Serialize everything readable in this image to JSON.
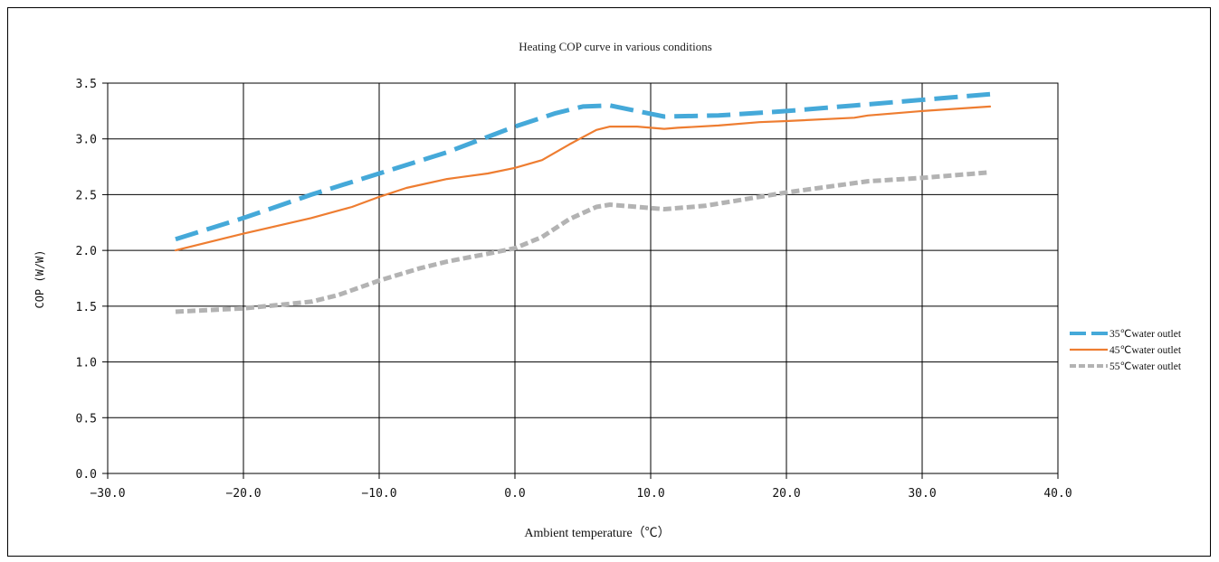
{
  "chart_data": {
    "type": "line",
    "title": "Heating COP curve in various conditions",
    "xlabel": "Ambient temperature（℃）",
    "ylabel": "COP (W/W)",
    "xlim": [
      -30,
      40
    ],
    "ylim": [
      0,
      3.5
    ],
    "x_ticks": [
      -30,
      -20,
      -10,
      0,
      10,
      20,
      30,
      40
    ],
    "x_tick_labels": [
      "−30.0",
      "−20.0",
      "−10.0",
      "0.0",
      "10.0",
      "20.0",
      "30.0",
      "40.0"
    ],
    "y_ticks": [
      0,
      0.5,
      1.0,
      1.5,
      2.0,
      2.5,
      3.0,
      3.5
    ],
    "y_tick_labels": [
      "0.0",
      "0.5",
      "1.0",
      "1.5",
      "2.0",
      "2.5",
      "3.0",
      "3.5"
    ],
    "grid": true,
    "legend_position": "right",
    "series": [
      {
        "name": "35℃water outlet",
        "color": "#45a9d9",
        "dash": "long-dash",
        "points": [
          [
            -25,
            2.1
          ],
          [
            -20,
            2.29
          ],
          [
            -15,
            2.5
          ],
          [
            -10,
            2.69
          ],
          [
            -5,
            2.88
          ],
          [
            0,
            3.11
          ],
          [
            3,
            3.23
          ],
          [
            5,
            3.29
          ],
          [
            7,
            3.3
          ],
          [
            9,
            3.25
          ],
          [
            11,
            3.2
          ],
          [
            15,
            3.21
          ],
          [
            20,
            3.25
          ],
          [
            25,
            3.3
          ],
          [
            30,
            3.35
          ],
          [
            35,
            3.4
          ]
        ]
      },
      {
        "name": "45℃water outlet",
        "color": "#ee7d31",
        "dash": "solid",
        "points": [
          [
            -25,
            2.0
          ],
          [
            -20,
            2.15
          ],
          [
            -15,
            2.29
          ],
          [
            -12,
            2.39
          ],
          [
            -10,
            2.48
          ],
          [
            -8,
            2.56
          ],
          [
            -5,
            2.64
          ],
          [
            -2,
            2.69
          ],
          [
            0,
            2.74
          ],
          [
            2,
            2.81
          ],
          [
            4,
            2.95
          ],
          [
            6,
            3.08
          ],
          [
            7,
            3.11
          ],
          [
            9,
            3.11
          ],
          [
            11,
            3.09
          ],
          [
            12,
            3.1
          ],
          [
            15,
            3.12
          ],
          [
            18,
            3.15
          ],
          [
            20,
            3.16
          ],
          [
            25,
            3.19
          ],
          [
            26,
            3.21
          ],
          [
            30,
            3.25
          ],
          [
            35,
            3.29
          ]
        ]
      },
      {
        "name": "55℃water outlet",
        "color": "#b3b3b3",
        "dash": "short-dash",
        "points": [
          [
            -25,
            1.45
          ],
          [
            -20,
            1.48
          ],
          [
            -15,
            1.54
          ],
          [
            -13,
            1.6
          ],
          [
            -10,
            1.73
          ],
          [
            -7,
            1.84
          ],
          [
            -5,
            1.9
          ],
          [
            -2,
            1.97
          ],
          [
            0,
            2.02
          ],
          [
            2,
            2.12
          ],
          [
            4,
            2.28
          ],
          [
            6,
            2.39
          ],
          [
            7,
            2.41
          ],
          [
            9,
            2.39
          ],
          [
            11,
            2.37
          ],
          [
            14,
            2.4
          ],
          [
            17,
            2.46
          ],
          [
            20,
            2.52
          ],
          [
            23,
            2.57
          ],
          [
            26,
            2.62
          ],
          [
            30,
            2.65
          ],
          [
            35,
            2.7
          ]
        ]
      }
    ]
  }
}
